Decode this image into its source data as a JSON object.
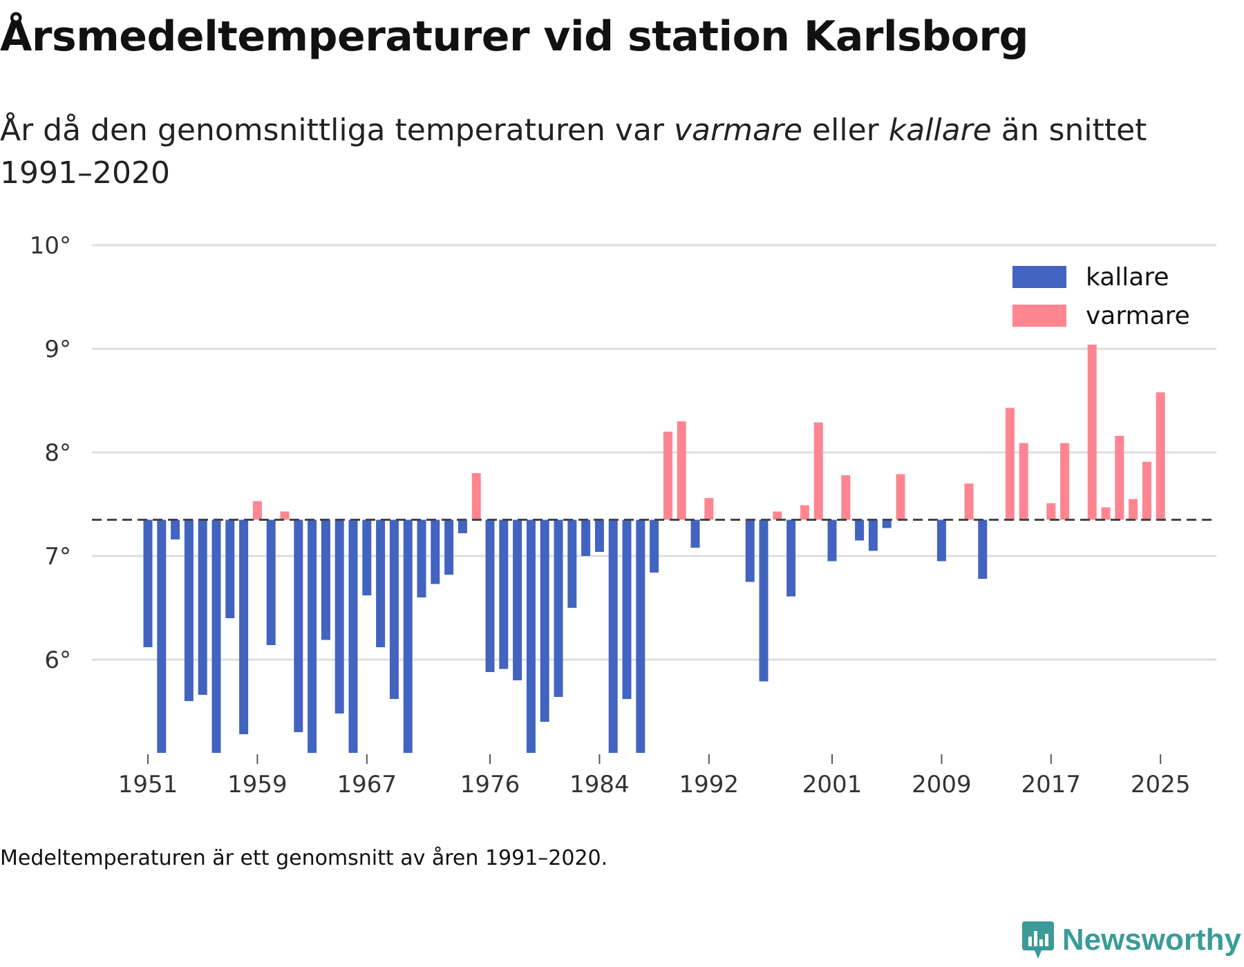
{
  "title": "Årsmedeltemperaturer vid station Karlsborg",
  "subtitle": {
    "part1": "År då den genomsnittliga temperaturen var ",
    "warm_word": "varmare",
    "part2": " eller ",
    "cold_word": "kallare",
    "part3": " än snittet 1991–2020"
  },
  "note": "Medeltemperaturen är ett genomsnitt av åren 1991–2020.",
  "brand": {
    "name": "Newsworthy",
    "logo_icon": "newsworthy-logo-icon",
    "color": "#3a9b98"
  },
  "colors": {
    "cold": "#4264c0",
    "warm": "#ff8591",
    "grid": "#dddddd",
    "baseline": "#444444"
  },
  "chart_data": {
    "type": "bar",
    "title": "Årsmedeltemperaturer vid station Karlsborg",
    "xlabel": "",
    "ylabel": "",
    "baseline": 7.35,
    "ylim": [
      5.1,
      10.1
    ],
    "yticks": [
      6,
      7,
      8,
      9,
      10
    ],
    "ytick_labels": [
      "6°",
      "7°",
      "8°",
      "9°",
      "10°"
    ],
    "xticks": [
      1951,
      1959,
      1967,
      1976,
      1984,
      1992,
      2001,
      2009,
      2017,
      2025
    ],
    "grid": true,
    "legend_position": "top-right",
    "legend": [
      {
        "key": "cold",
        "label": "kallare"
      },
      {
        "key": "warm",
        "label": "varmare"
      }
    ],
    "years": [
      1951,
      1952,
      1953,
      1954,
      1955,
      1956,
      1957,
      1958,
      1959,
      1960,
      1961,
      1962,
      1963,
      1964,
      1965,
      1966,
      1967,
      1968,
      1969,
      1970,
      1971,
      1972,
      1973,
      1974,
      1975,
      1976,
      1977,
      1978,
      1979,
      1980,
      1981,
      1982,
      1983,
      1984,
      1985,
      1986,
      1987,
      1988,
      1989,
      1990,
      1991,
      1992,
      1993,
      1994,
      1995,
      1996,
      1997,
      1998,
      1999,
      2000,
      2001,
      2002,
      2003,
      2004,
      2005,
      2006,
      2007,
      2008,
      2009,
      2010,
      2011,
      2012,
      2013,
      2014,
      2015,
      2016,
      2017,
      2018,
      2019,
      2020,
      2021,
      2022,
      2023,
      2024,
      2025
    ],
    "values": [
      6.12,
      5.1,
      7.16,
      5.6,
      5.66,
      5.1,
      6.4,
      5.28,
      7.53,
      6.14,
      7.43,
      5.3,
      5.1,
      6.19,
      5.48,
      5.1,
      6.62,
      6.12,
      5.62,
      5.1,
      6.6,
      6.73,
      6.82,
      7.22,
      7.8,
      5.88,
      5.91,
      5.8,
      5.1,
      5.4,
      5.64,
      6.5,
      7.0,
      7.04,
      5.1,
      5.62,
      5.1,
      6.84,
      8.2,
      8.3,
      7.08,
      7.56,
      null,
      null,
      6.75,
      5.79,
      7.43,
      6.61,
      7.49,
      8.29,
      6.95,
      7.78,
      7.15,
      7.05,
      7.27,
      7.79,
      null,
      null,
      6.95,
      null,
      7.7,
      6.78,
      null,
      8.43,
      8.09,
      null,
      7.51,
      8.09,
      null,
      9.04,
      7.47,
      8.16,
      7.55,
      7.91,
      8.58
    ]
  }
}
